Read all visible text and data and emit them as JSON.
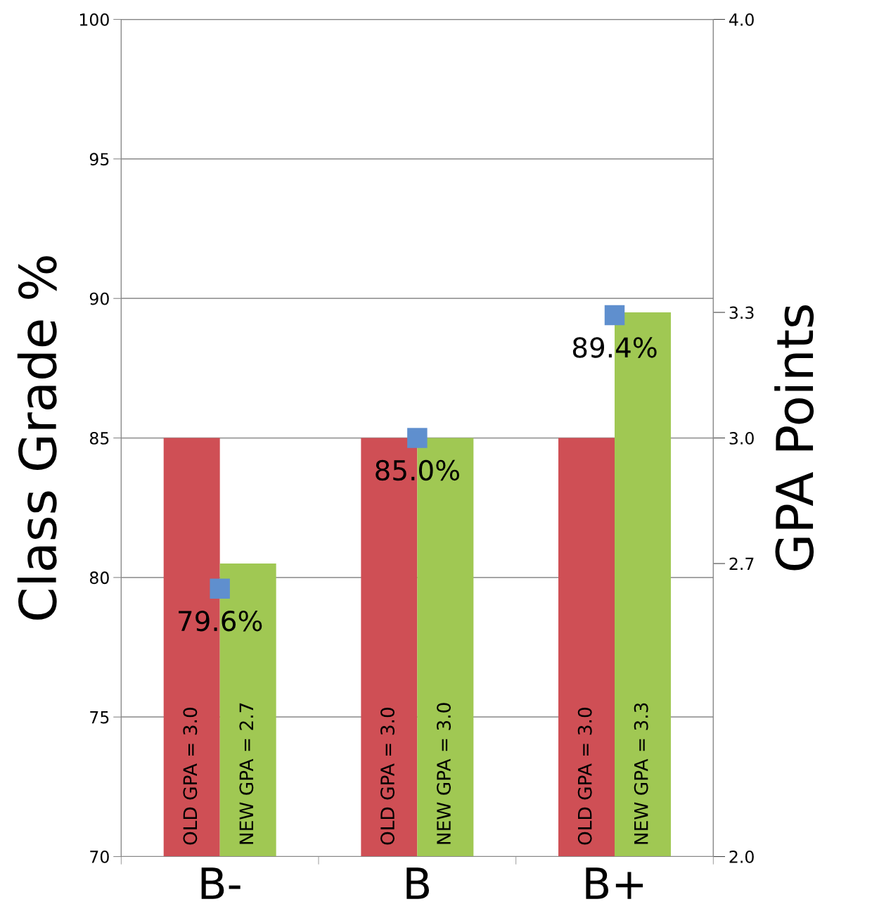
{
  "chart_data": {
    "type": "bar",
    "ylabel": "Class Grade %",
    "y2label": "GPA Points",
    "categories": [
      "B-",
      "B",
      "B+"
    ],
    "series": [
      {
        "axis": "y2",
        "color": "#cf4f55",
        "values": [
          3.0,
          3.0,
          3.0
        ],
        "value_labels": [
          "OLD GPA = 3.0",
          "OLD GPA = 3.0",
          "OLD GPA = 3.0"
        ]
      },
      {
        "axis": "y2",
        "color": "#a0c853",
        "values": [
          2.7,
          3.0,
          3.3
        ],
        "value_labels": [
          "NEW GPA = 2.7",
          "NEW GPA = 3.0",
          "NEW GPA = 3.3"
        ]
      },
      {
        "type": "scatter",
        "marker": "square",
        "color": "#5f8fce",
        "values": [
          79.6,
          85.0,
          89.4
        ],
        "value_labels": [
          "79.6%",
          "85.0%",
          "89.4%"
        ]
      }
    ],
    "ylim": [
      70,
      100
    ],
    "yticks": [
      70,
      75,
      80,
      85,
      90,
      95,
      100
    ],
    "y2lim": [
      2.0,
      4.0
    ],
    "y2ticks": [
      {
        "value": 2.0,
        "label": "2.0"
      },
      {
        "value": 2.7,
        "label": "2.7"
      },
      {
        "value": 3.0,
        "label": "3.0"
      },
      {
        "value": 3.3,
        "label": "3.3"
      },
      {
        "value": 4.0,
        "label": "4.0"
      }
    ],
    "grid": "y",
    "legend": false
  }
}
